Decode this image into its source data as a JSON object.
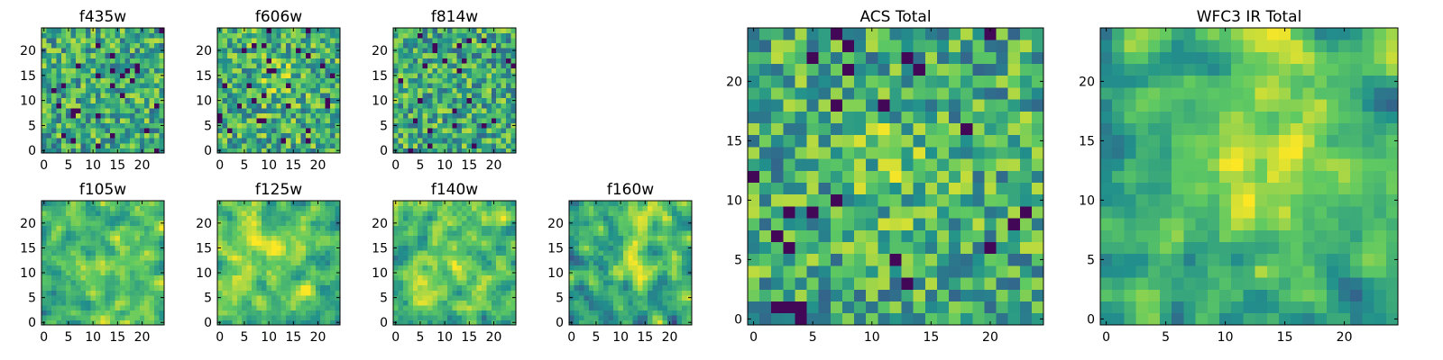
{
  "figure": {
    "colormap": "viridis",
    "colormap_stops": [
      "#440154",
      "#3b528b",
      "#21918c",
      "#5ec962",
      "#fde725"
    ],
    "value_range": [
      0,
      1
    ],
    "grid": false,
    "legend": "none"
  },
  "chart_data": [
    {
      "id": "f435w",
      "type": "heatmap",
      "title": "f435w",
      "shape": [
        25,
        25
      ],
      "xlim": [
        -0.5,
        24.5
      ],
      "ylim": [
        -0.5,
        24.5
      ],
      "xticks": [
        0,
        5,
        10,
        15,
        20
      ],
      "yticks": [
        0,
        5,
        10,
        15,
        20
      ],
      "xlabel": "",
      "ylabel": "",
      "smooth": 0,
      "mean": 0.6,
      "spread": 0.3,
      "seed": 11,
      "blobs": []
    },
    {
      "id": "f606w",
      "type": "heatmap",
      "title": "f606w",
      "shape": [
        25,
        25
      ],
      "xlim": [
        -0.5,
        24.5
      ],
      "ylim": [
        -0.5,
        24.5
      ],
      "xticks": [
        0,
        5,
        10,
        15,
        20
      ],
      "yticks": [
        0,
        5,
        10,
        15,
        20
      ],
      "xlabel": "",
      "ylabel": "",
      "smooth": 0,
      "mean": 0.62,
      "spread": 0.3,
      "seed": 23,
      "blobs": [
        {
          "x": 12,
          "y": 14,
          "r": 3,
          "a": 0.15
        }
      ]
    },
    {
      "id": "f814w",
      "type": "heatmap",
      "title": "f814w",
      "shape": [
        25,
        25
      ],
      "xlim": [
        -0.5,
        24.5
      ],
      "ylim": [
        -0.5,
        24.5
      ],
      "xticks": [
        0,
        5,
        10,
        15,
        20
      ],
      "yticks": [
        0,
        5,
        10,
        15,
        20
      ],
      "xlabel": "",
      "ylabel": "",
      "smooth": 0,
      "mean": 0.6,
      "spread": 0.3,
      "seed": 37,
      "blobs": []
    },
    {
      "id": "f105w",
      "type": "heatmap",
      "title": "f105w",
      "shape": [
        25,
        25
      ],
      "xlim": [
        -0.5,
        24.5
      ],
      "ylim": [
        -0.5,
        24.5
      ],
      "xticks": [
        0,
        5,
        10,
        15,
        20
      ],
      "yticks": [
        0,
        5,
        10,
        15,
        20
      ],
      "xlabel": "",
      "ylabel": "",
      "smooth": 1,
      "mean": 0.68,
      "spread": 0.32,
      "seed": 41,
      "blobs": [
        {
          "x": 14,
          "y": 10,
          "r": 5,
          "a": 0.15
        }
      ]
    },
    {
      "id": "f125w",
      "type": "heatmap",
      "title": "f125w",
      "shape": [
        25,
        25
      ],
      "xlim": [
        -0.5,
        24.5
      ],
      "ylim": [
        -0.5,
        24.5
      ],
      "xticks": [
        0,
        5,
        10,
        15,
        20
      ],
      "yticks": [
        0,
        5,
        10,
        15,
        20
      ],
      "xlabel": "",
      "ylabel": "",
      "smooth": 1,
      "mean": 0.7,
      "spread": 0.32,
      "seed": 53,
      "blobs": [
        {
          "x": 10,
          "y": 17,
          "r": 4,
          "a": 0.15
        }
      ]
    },
    {
      "id": "f140w",
      "type": "heatmap",
      "title": "f140w",
      "shape": [
        25,
        25
      ],
      "xlim": [
        -0.5,
        24.5
      ],
      "ylim": [
        -0.5,
        24.5
      ],
      "xticks": [
        0,
        5,
        10,
        15,
        20
      ],
      "yticks": [
        0,
        5,
        10,
        15,
        20
      ],
      "xlabel": "",
      "ylabel": "",
      "smooth": 1,
      "mean": 0.68,
      "spread": 0.32,
      "seed": 67,
      "blobs": [
        {
          "x": 8,
          "y": 13,
          "r": 4,
          "a": 0.12
        }
      ]
    },
    {
      "id": "f160w",
      "type": "heatmap",
      "title": "f160w",
      "shape": [
        25,
        25
      ],
      "xlim": [
        -0.5,
        24.5
      ],
      "ylim": [
        -0.5,
        24.5
      ],
      "xticks": [
        0,
        5,
        10,
        15,
        20
      ],
      "yticks": [
        0,
        5,
        10,
        15,
        20
      ],
      "xlabel": "",
      "ylabel": "",
      "smooth": 1,
      "mean": 0.58,
      "spread": 0.38,
      "seed": 79,
      "blobs": [
        {
          "x": 13,
          "y": 12,
          "r": 3,
          "a": 0.35
        },
        {
          "x": 15,
          "y": 21,
          "r": 3,
          "a": 0.2
        }
      ]
    },
    {
      "id": "acs",
      "type": "heatmap",
      "title": "ACS Total",
      "shape": [
        25,
        25
      ],
      "xlim": [
        -0.5,
        24.5
      ],
      "ylim": [
        -0.5,
        24.5
      ],
      "xticks": [
        0,
        5,
        10,
        15,
        20
      ],
      "yticks": [
        0,
        5,
        10,
        15,
        20
      ],
      "xlabel": "",
      "ylabel": "",
      "smooth": 0,
      "mean": 0.6,
      "spread": 0.3,
      "seed": 97,
      "blobs": [
        {
          "x": 12,
          "y": 13,
          "r": 3,
          "a": 0.15
        }
      ]
    },
    {
      "id": "wfc3",
      "type": "heatmap",
      "title": "WFC3 IR Total",
      "shape": [
        25,
        25
      ],
      "xlim": [
        -0.5,
        24.5
      ],
      "ylim": [
        -0.5,
        24.5
      ],
      "xticks": [
        0,
        5,
        10,
        15,
        20
      ],
      "yticks": [
        0,
        5,
        10,
        15,
        20
      ],
      "xlabel": "",
      "ylabel": "",
      "smooth": 1,
      "mean": 0.6,
      "spread": 0.3,
      "seed": 113,
      "blobs": [
        {
          "x": 13,
          "y": 12,
          "r": 5,
          "a": 0.25
        },
        {
          "x": 15,
          "y": 22,
          "r": 4,
          "a": 0.2
        }
      ]
    }
  ]
}
